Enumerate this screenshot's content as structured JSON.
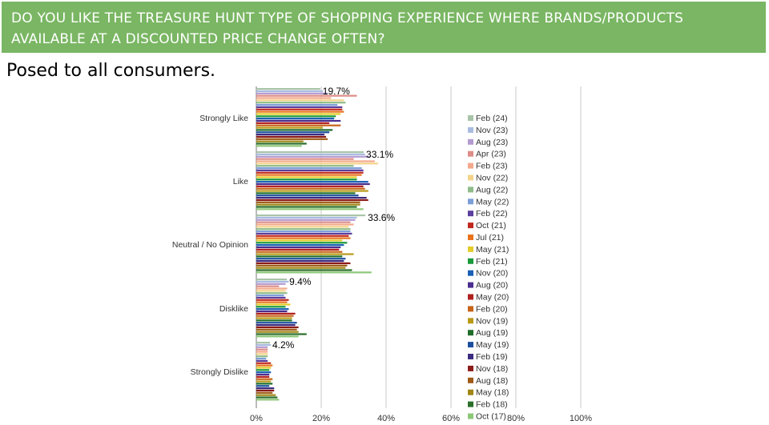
{
  "header": {
    "title": "DO YOU LIKE THE TREASURE HUNT TYPE OF SHOPPING EXPERIENCE WHERE BRANDS/PRODUCTS AVAILABLE AT A DISCOUNTED PRICE CHANGE OFTEN?",
    "subtitle": "Posed to all consumers.",
    "banner_color": "#7ab663"
  },
  "chart_data": {
    "type": "bar",
    "orientation": "horizontal",
    "categories": [
      "Strongly Like",
      "Like",
      "Neutral / No Opinion",
      "Disklike",
      "Strongly Dislike"
    ],
    "xlim": [
      0,
      100
    ],
    "x_ticks": [
      "0%",
      "20%",
      "40%",
      "60%",
      "80%",
      "100%"
    ],
    "grid": "vertical",
    "legend_placement": "right",
    "series_labels": [
      "Feb (24)",
      "Nov (23)",
      "Aug (23)",
      "Apr (23)",
      "Feb (23)",
      "Nov (22)",
      "Aug (22)",
      "May (22)",
      "Feb (22)",
      "Oct (21)",
      "Jul (21)",
      "May (21)",
      "Feb (21)",
      "Nov (20)",
      "Aug (20)",
      "May (20)",
      "Feb (20)",
      "Nov (19)",
      "Aug (19)",
      "May (19)",
      "Feb (19)",
      "Nov (18)",
      "Aug (18)",
      "May (18)",
      "Feb (18)",
      "Oct (17)"
    ],
    "series_colors": [
      "#a9c4a9",
      "#a9bce0",
      "#b39bd1",
      "#dd8d88",
      "#f4a98c",
      "#f3d48a",
      "#8fbc8a",
      "#7d9fd8",
      "#5b3f9e",
      "#c0281e",
      "#e8731e",
      "#e4cc2a",
      "#1a9a3a",
      "#1a5fb6",
      "#4a2e8e",
      "#b21f1f",
      "#c8641a",
      "#b89a18",
      "#1e6e2a",
      "#1b4f9e",
      "#3c2b80",
      "#8c1c18",
      "#9e5a16",
      "#a08614",
      "#2a6e2a",
      "#8dc878"
    ],
    "values": [
      [
        19.7,
        20.5,
        22.0,
        31.0,
        23.0,
        27.0,
        27.5,
        25.0,
        26.5,
        26.5,
        27.0,
        26.0,
        24.5,
        24.0,
        26.0,
        22.5,
        26.0,
        20.5,
        23.5,
        22.5,
        21.0,
        21.5,
        22.0,
        14.5,
        15.5,
        14.0
      ],
      [
        33.1,
        33.5,
        35.0,
        30.0,
        36.5,
        37.5,
        30.0,
        32.5,
        33.0,
        33.0,
        32.5,
        31.0,
        31.0,
        34.5,
        35.0,
        33.0,
        33.5,
        34.5,
        30.5,
        31.5,
        34.0,
        34.5,
        32.0,
        32.0,
        31.0,
        33.0
      ],
      [
        33.6,
        31.0,
        30.5,
        29.0,
        30.0,
        28.5,
        29.0,
        29.0,
        29.5,
        28.5,
        29.0,
        26.5,
        28.0,
        27.0,
        26.0,
        25.5,
        26.5,
        30.0,
        26.5,
        27.5,
        27.0,
        29.0,
        28.0,
        27.5,
        29.5,
        35.5
      ],
      [
        9.4,
        10.0,
        9.0,
        7.0,
        9.5,
        9.0,
        9.5,
        8.5,
        9.0,
        10.0,
        9.5,
        10.5,
        9.0,
        10.0,
        9.5,
        12.0,
        11.5,
        11.0,
        11.0,
        12.5,
        12.0,
        13.0,
        12.5,
        13.0,
        15.5,
        13.0
      ],
      [
        4.2,
        4.5,
        3.5,
        3.5,
        3.5,
        3.5,
        3.5,
        3.0,
        3.5,
        4.5,
        5.0,
        4.5,
        4.0,
        4.5,
        4.0,
        4.0,
        5.0,
        4.5,
        5.0,
        4.0,
        5.5,
        5.5,
        5.0,
        6.0,
        6.5,
        7.0
      ]
    ],
    "data_labels": [
      "19.7%",
      "33.1%",
      "33.6%",
      "9.4%",
      "4.2%"
    ]
  }
}
